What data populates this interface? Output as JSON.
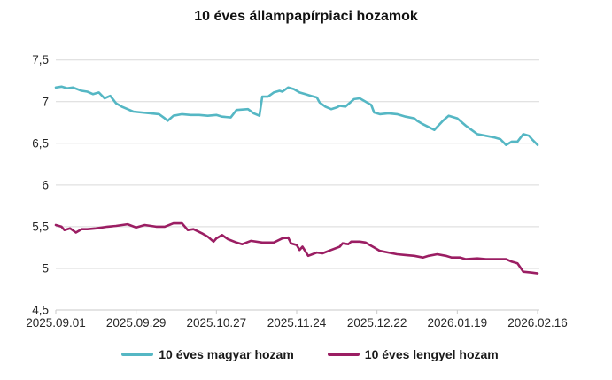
{
  "title": "10 éves állampapírpiaci hozamok",
  "colors": {
    "magyar_line": "#55b7c4",
    "lengyel_line": "#9b1e63",
    "gridline": "#d9d9d9",
    "axis_line": "#c9c9c9",
    "axis_text": "#262626",
    "title_text": "#121212",
    "legend_text": "#1a1a1a",
    "background": "#ffffff"
  },
  "chart_data": {
    "type": "line",
    "title": "10 éves állampapírpiaci hozamok",
    "xlabel": "",
    "ylabel": "",
    "ylim": [
      4.5,
      7.5
    ],
    "x_span_days": 168,
    "grid": true,
    "legend_position": "bottom",
    "y_ticks": [
      {
        "label": "7,5",
        "value": 7.5
      },
      {
        "label": "7",
        "value": 7.0
      },
      {
        "label": "6,5",
        "value": 6.5
      },
      {
        "label": "6",
        "value": 6.0
      },
      {
        "label": "5,5",
        "value": 5.5
      },
      {
        "label": "5",
        "value": 5.0
      },
      {
        "label": "4,5",
        "value": 4.5
      }
    ],
    "x_ticks": [
      {
        "label": "2025.09.01",
        "day": 0
      },
      {
        "label": "2025.09.29",
        "day": 28
      },
      {
        "label": "2025.10.27",
        "day": 56
      },
      {
        "label": "2025.11.24",
        "day": 84
      },
      {
        "label": "2025.12.22",
        "day": 112
      },
      {
        "label": "2026.01.19",
        "day": 140
      },
      {
        "label": "2026.02.16",
        "day": 168
      }
    ],
    "series": [
      {
        "name": "10 éves magyar hozam",
        "color": "#55b7c4",
        "points": [
          [
            0,
            7.17
          ],
          [
            2,
            7.18
          ],
          [
            4,
            7.16
          ],
          [
            6,
            7.17
          ],
          [
            9,
            7.13
          ],
          [
            11,
            7.12
          ],
          [
            13,
            7.09
          ],
          [
            15,
            7.11
          ],
          [
            17,
            7.04
          ],
          [
            19,
            7.07
          ],
          [
            21,
            6.98
          ],
          [
            23,
            6.94
          ],
          [
            25,
            6.91
          ],
          [
            27,
            6.88
          ],
          [
            30,
            6.87
          ],
          [
            33,
            6.86
          ],
          [
            36,
            6.85
          ],
          [
            38,
            6.8
          ],
          [
            39,
            6.77
          ],
          [
            41,
            6.83
          ],
          [
            44,
            6.85
          ],
          [
            47,
            6.84
          ],
          [
            50,
            6.84
          ],
          [
            53,
            6.83
          ],
          [
            56,
            6.84
          ],
          [
            58,
            6.82
          ],
          [
            61,
            6.81
          ],
          [
            63,
            6.9
          ],
          [
            67,
            6.91
          ],
          [
            69,
            6.86
          ],
          [
            71,
            6.83
          ],
          [
            72,
            7.06
          ],
          [
            74,
            7.06
          ],
          [
            76,
            7.11
          ],
          [
            78,
            7.13
          ],
          [
            79,
            7.12
          ],
          [
            81,
            7.17
          ],
          [
            83,
            7.15
          ],
          [
            85,
            7.11
          ],
          [
            87,
            7.09
          ],
          [
            89,
            7.07
          ],
          [
            91,
            7.05
          ],
          [
            92,
            6.99
          ],
          [
            94,
            6.94
          ],
          [
            96,
            6.91
          ],
          [
            98,
            6.93
          ],
          [
            99,
            6.95
          ],
          [
            101,
            6.94
          ],
          [
            104,
            7.03
          ],
          [
            106,
            7.04
          ],
          [
            108,
            7.0
          ],
          [
            110,
            6.96
          ],
          [
            111,
            6.87
          ],
          [
            113,
            6.85
          ],
          [
            116,
            6.86
          ],
          [
            119,
            6.85
          ],
          [
            122,
            6.82
          ],
          [
            125,
            6.8
          ],
          [
            126,
            6.77
          ],
          [
            128,
            6.73
          ],
          [
            132,
            6.66
          ],
          [
            135,
            6.77
          ],
          [
            137,
            6.83
          ],
          [
            140,
            6.8
          ],
          [
            143,
            6.71
          ],
          [
            145,
            6.66
          ],
          [
            147,
            6.61
          ],
          [
            150,
            6.59
          ],
          [
            153,
            6.57
          ],
          [
            155,
            6.55
          ],
          [
            157,
            6.48
          ],
          [
            159,
            6.52
          ],
          [
            161,
            6.52
          ],
          [
            163,
            6.61
          ],
          [
            165,
            6.59
          ],
          [
            166,
            6.55
          ],
          [
            168,
            6.48
          ]
        ]
      },
      {
        "name": "10 éves lengyel hozam",
        "color": "#9b1e63",
        "points": [
          [
            0,
            5.52
          ],
          [
            2,
            5.5
          ],
          [
            3,
            5.46
          ],
          [
            5,
            5.48
          ],
          [
            7,
            5.43
          ],
          [
            9,
            5.47
          ],
          [
            11,
            5.47
          ],
          [
            14,
            5.48
          ],
          [
            18,
            5.5
          ],
          [
            21,
            5.51
          ],
          [
            25,
            5.53
          ],
          [
            28,
            5.49
          ],
          [
            31,
            5.52
          ],
          [
            35,
            5.5
          ],
          [
            38,
            5.5
          ],
          [
            41,
            5.54
          ],
          [
            44,
            5.54
          ],
          [
            46,
            5.46
          ],
          [
            48,
            5.47
          ],
          [
            51,
            5.42
          ],
          [
            53,
            5.38
          ],
          [
            55,
            5.32
          ],
          [
            56,
            5.36
          ],
          [
            58,
            5.4
          ],
          [
            60,
            5.35
          ],
          [
            63,
            5.31
          ],
          [
            65,
            5.29
          ],
          [
            68,
            5.33
          ],
          [
            72,
            5.31
          ],
          [
            76,
            5.31
          ],
          [
            79,
            5.36
          ],
          [
            81,
            5.37
          ],
          [
            82,
            5.3
          ],
          [
            84,
            5.28
          ],
          [
            85,
            5.22
          ],
          [
            86,
            5.26
          ],
          [
            88,
            5.15
          ],
          [
            91,
            5.19
          ],
          [
            93,
            5.18
          ],
          [
            96,
            5.22
          ],
          [
            99,
            5.26
          ],
          [
            100,
            5.3
          ],
          [
            102,
            5.29
          ],
          [
            103,
            5.32
          ],
          [
            106,
            5.32
          ],
          [
            108,
            5.31
          ],
          [
            109,
            5.29
          ],
          [
            111,
            5.25
          ],
          [
            113,
            5.21
          ],
          [
            116,
            5.19
          ],
          [
            119,
            5.17
          ],
          [
            122,
            5.16
          ],
          [
            125,
            5.15
          ],
          [
            128,
            5.13
          ],
          [
            130,
            5.15
          ],
          [
            133,
            5.17
          ],
          [
            136,
            5.15
          ],
          [
            138,
            5.13
          ],
          [
            141,
            5.13
          ],
          [
            143,
            5.11
          ],
          [
            147,
            5.12
          ],
          [
            150,
            5.11
          ],
          [
            153,
            5.11
          ],
          [
            157,
            5.11
          ],
          [
            159,
            5.08
          ],
          [
            161,
            5.06
          ],
          [
            162,
            5.01
          ],
          [
            163,
            4.96
          ],
          [
            166,
            4.95
          ],
          [
            168,
            4.94
          ]
        ]
      }
    ]
  },
  "legend": {
    "items": [
      {
        "label": "10 éves magyar hozam",
        "color": "#55b7c4"
      },
      {
        "label": "10 éves lengyel hozam",
        "color": "#9b1e63"
      }
    ]
  }
}
